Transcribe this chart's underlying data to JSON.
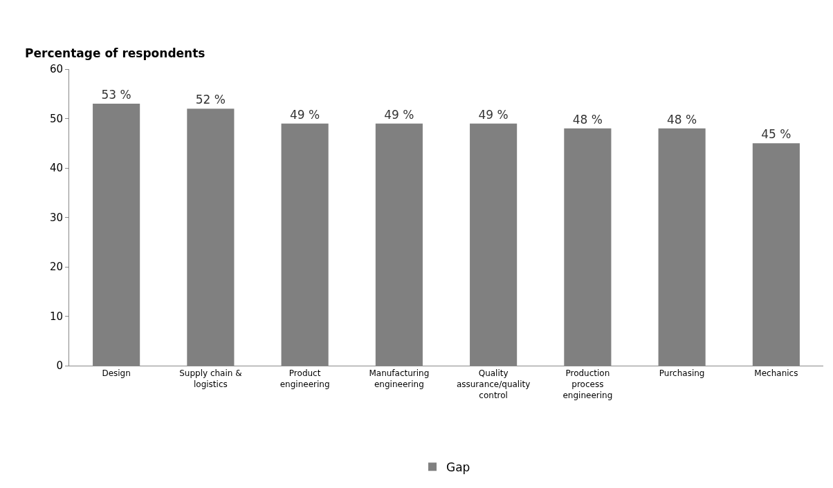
{
  "chart_data": {
    "type": "bar",
    "title": "Percentage of respondents",
    "categories": [
      "Design",
      "Supply chain & logistics",
      "Product engineering",
      "Manufacturing engineering",
      "Quality assurance/quality control",
      "Production process engineering",
      "Purchasing",
      "Mechanics"
    ],
    "series": [
      {
        "name": "Gap",
        "color": "#808080",
        "values": [
          53,
          52,
          49,
          49,
          49,
          48,
          48,
          45
        ],
        "value_labels": [
          "53 %",
          "52 %",
          "49 %",
          "49 %",
          "49 %",
          "48 %",
          "48 %",
          "45 %"
        ]
      }
    ],
    "ylim": [
      0,
      60
    ],
    "yticks": [
      0,
      10,
      20,
      30,
      40,
      50,
      60
    ],
    "grid": false,
    "legend": "bottom"
  }
}
